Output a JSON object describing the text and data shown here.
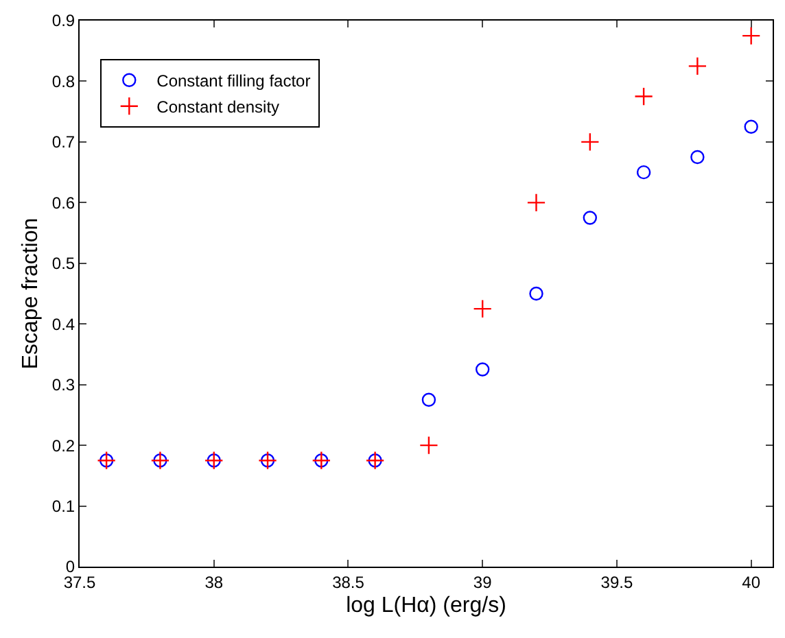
{
  "chart_data": {
    "type": "scatter",
    "xlabel": "log L(Hα) (erg/s)",
    "ylabel": "Escape fraction",
    "x": [
      37.6,
      37.8,
      38.0,
      38.2,
      38.4,
      38.6,
      38.8,
      39.0,
      39.2,
      39.4,
      39.6,
      39.8,
      40.0
    ],
    "series": [
      {
        "name": "Constant filling factor",
        "color": "#0000ff",
        "marker": "circle",
        "values": [
          0.175,
          0.175,
          0.175,
          0.175,
          0.175,
          0.175,
          0.275,
          0.325,
          0.45,
          0.575,
          0.65,
          0.675,
          0.725
        ]
      },
      {
        "name": "Constant density",
        "color": "#ff0000",
        "marker": "cross",
        "values": [
          0.175,
          0.175,
          0.175,
          0.175,
          0.175,
          0.175,
          0.2,
          0.425,
          0.6,
          0.7,
          0.775,
          0.825,
          0.875
        ]
      }
    ],
    "xlim": [
      37.5,
      40.08
    ],
    "xticks": [
      37.5,
      38,
      38.5,
      39,
      39.5,
      40
    ],
    "ylim": [
      0,
      0.9
    ],
    "yticks": [
      0,
      0.1,
      0.2,
      0.3,
      0.4,
      0.5,
      0.6,
      0.7,
      0.8,
      0.9
    ],
    "legend": "top left"
  }
}
